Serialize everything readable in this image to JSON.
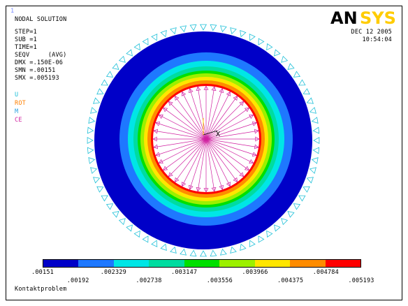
{
  "window_number": "1",
  "logo_text": "ANSYS",
  "header": {
    "title": "NODAL SOLUTION",
    "lines": [
      "STEP=1",
      "SUB =1",
      "TIME=1",
      "SEQV     (AVG)",
      "DMX =.150E-06",
      "SMN =.00151",
      "SMX =.005193"
    ]
  },
  "symbols_legend": [
    {
      "label": "U",
      "color": "#20c0d8"
    },
    {
      "label": "ROT",
      "color": "#ff8000"
    },
    {
      "label": "M",
      "color": "#2aa0e0"
    },
    {
      "label": "CE",
      "color": "#d020a0"
    }
  ],
  "date": "DEC 12 2005",
  "time": "10:54:04",
  "triad_label": "X",
  "contour_colors": [
    "#0000c8",
    "#1e78ff",
    "#00e6e6",
    "#00dca0",
    "#00e000",
    "#9cf000",
    "#ffe600",
    "#ff8c00",
    "#ff0000"
  ],
  "legend_values_top": [
    ".00151",
    ".002329",
    ".003147",
    ".003966",
    ".004784"
  ],
  "legend_values_bottom": [
    ".00192",
    ".002738",
    ".003556",
    ".004375",
    ".005193"
  ],
  "caption": "Kontaktproblem"
}
